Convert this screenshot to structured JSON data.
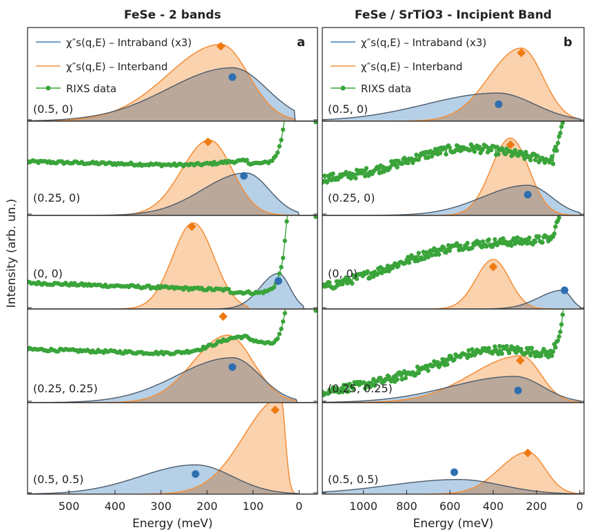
{
  "figure": {
    "ylabel": "Intensity (arb. un.)",
    "xlabel": "Energy (meV)"
  },
  "legend": {
    "intra_prefix": "χ″s(q,E) – Intraband (x3)",
    "inter_prefix": "χ″s(q,E) – Interband",
    "rixs": "RIXS data"
  },
  "colors": {
    "intra": "#3b7fb8",
    "intra_fill": "#a9c8e3",
    "inter": "#f3903b",
    "inter_fill": "#fbd2ae",
    "overlap_fill": "#baa89b",
    "rixs": "#3aa43a",
    "text": "#222222",
    "frame": "#222222"
  },
  "chart_data": [
    {
      "type": "area",
      "panel_label": "a",
      "title": "FeSe - 2 bands",
      "xlabel": "Energy (meV)",
      "xlim": [
        590,
        -40
      ],
      "x_ticks": [
        500,
        400,
        300,
        200,
        100,
        0
      ],
      "legend_position": "top-left",
      "rows": [
        {
          "q_label": "(0.5, 0)",
          "intraband": {
            "center": 145,
            "sigma_high": 140,
            "sigma_low": 75,
            "amp": 0.57,
            "end": 10,
            "marker": [
              145,
              0.47
            ]
          },
          "interband": {
            "center": 170,
            "sigma_high": 115,
            "sigma_low": 60,
            "amp": 0.82,
            "end": 10,
            "marker": [
              170,
              0.8
            ]
          },
          "rixs": null
        },
        {
          "q_label": "(0.25, 0)",
          "intraband": {
            "center": 115,
            "sigma_high": 95,
            "sigma_low": 50,
            "amp": 0.45,
            "end": 0,
            "marker": [
              120,
              0.42
            ]
          },
          "interband": {
            "center": 195,
            "sigma_high": 60,
            "sigma_low": 50,
            "amp": 0.8,
            "end": 0,
            "marker": [
              198,
              0.78
            ]
          },
          "rixs": {
            "start": 590,
            "level_start": 0.57,
            "level_end": 0.5,
            "bump_center": 110,
            "bump_amp": 0.06,
            "dip_center": 70,
            "rise_center": 25,
            "gap": [
              20,
              -22
            ]
          }
        },
        {
          "q_label": "(0, 0)",
          "intraband": {
            "center": 45,
            "sigma_high": 40,
            "sigma_low": 25,
            "amp": 0.38,
            "end": -10,
            "marker": [
              45,
              0.3
            ]
          },
          "interband": {
            "center": 230,
            "sigma_high": 45,
            "sigma_low": 45,
            "amp": 0.92,
            "end": 110,
            "marker": [
              233,
              0.88
            ]
          },
          "rixs": {
            "start": 590,
            "level_start": 0.28,
            "level_end": 0.17,
            "bump_center": 0,
            "bump_amp": 0.0,
            "dip_center": 110,
            "rise_center": 25,
            "gap": [
              18,
              -22
            ]
          }
        },
        {
          "q_label": "(0.25, 0.25)",
          "intraband": {
            "center": 145,
            "sigma_high": 120,
            "sigma_low": 60,
            "amp": 0.48,
            "end": 5,
            "marker": [
              145,
              0.38
            ]
          },
          "interband": {
            "center": 155,
            "sigma_high": 75,
            "sigma_low": 55,
            "amp": 0.72,
            "end": 5,
            "marker": [
              165,
              0.92
            ]
          },
          "rixs": {
            "start": 590,
            "level_start": 0.57,
            "level_end": 0.48,
            "bump_center": 120,
            "bump_amp": 0.2,
            "dip_center": 70,
            "rise_center": 22,
            "gap": [
              18,
              -22
            ]
          }
        },
        {
          "q_label": "(0.5, 0.5)",
          "intraband": {
            "center": 225,
            "sigma_high": 120,
            "sigma_low": 80,
            "amp": 0.32,
            "end": 0,
            "marker": [
              225,
              0.22
            ]
          },
          "interband": {
            "center": 40,
            "sigma_high": 80,
            "sigma_low": 10,
            "amp": 1.05,
            "end": 0,
            "marker": [
              52,
              0.92
            ]
          },
          "rixs": null
        }
      ]
    },
    {
      "type": "area",
      "panel_label": "b",
      "title": "FeSe / SrTiO3 - Incipient Band",
      "xlabel": "Energy (meV)",
      "xlim": [
        1190,
        -20
      ],
      "x_ticks": [
        1000,
        800,
        600,
        400,
        200,
        0
      ],
      "legend_position": "top-left",
      "rows": [
        {
          "q_label": "(0.5, 0)",
          "intraband": {
            "center": 380,
            "sigma_high": 330,
            "sigma_low": 170,
            "amp": 0.3,
            "end": 0,
            "marker": [
              375,
              0.18
            ]
          },
          "interband": {
            "center": 270,
            "sigma_high": 150,
            "sigma_low": 100,
            "amp": 0.78,
            "end": 0,
            "marker": [
              270,
              0.73
            ]
          },
          "rixs": null
        },
        {
          "q_label": "(0.25, 0)",
          "intraband": {
            "center": 240,
            "sigma_high": 210,
            "sigma_low": 110,
            "amp": 0.32,
            "end": 0,
            "marker": [
              240,
              0.22
            ]
          },
          "interband": {
            "center": 320,
            "sigma_high": 90,
            "sigma_low": 85,
            "amp": 0.82,
            "end": 0,
            "marker": [
              320,
              0.75
            ]
          },
          "rixs": {
            "start": 1190,
            "level_start": 0.38,
            "level_end": 0.55,
            "bump_center": 550,
            "bump_amp": 0.4,
            "dip_center": 0,
            "rise_center": 60,
            "gap": [
              35,
              -15
            ]
          }
        },
        {
          "q_label": "(0, 0)",
          "intraband": {
            "center": 80,
            "sigma_high": 110,
            "sigma_low": 40,
            "amp": 0.2,
            "end": 0,
            "marker": [
              70,
              0.2
            ]
          },
          "interband": {
            "center": 400,
            "sigma_high": 80,
            "sigma_low": 75,
            "amp": 0.53,
            "end": 0,
            "marker": [
              400,
              0.45
            ]
          },
          "rixs": {
            "start": 1190,
            "level_start": 0.22,
            "level_end": 0.8,
            "bump_center": 600,
            "bump_amp": 0.25,
            "dip_center": 0,
            "rise_center": 60,
            "gap": [
              35,
              -15
            ]
          }
        },
        {
          "q_label": "(0.25, 0.25)",
          "intraband": {
            "center": 300,
            "sigma_high": 300,
            "sigma_low": 130,
            "amp": 0.28,
            "end": 0,
            "marker": [
              285,
              0.13
            ]
          },
          "interband": {
            "center": 270,
            "sigma_high": 230,
            "sigma_low": 90,
            "amp": 0.5,
            "end": 0,
            "marker": [
              275,
              0.45
            ]
          },
          "rixs": {
            "start": 1190,
            "level_start": 0.12,
            "level_end": 0.45,
            "bump_center": 430,
            "bump_amp": 0.38,
            "dip_center": 0,
            "rise_center": 60,
            "gap": [
              35,
              -15
            ]
          }
        },
        {
          "q_label": "(0.5, 0.5)",
          "intraband": {
            "center": 560,
            "sigma_high": 320,
            "sigma_low": 200,
            "amp": 0.16,
            "end": 0,
            "marker": [
              580,
              0.24
            ]
          },
          "interband": {
            "center": 240,
            "sigma_high": 130,
            "sigma_low": 80,
            "amp": 0.46,
            "end": 0,
            "marker": [
              240,
              0.45
            ]
          },
          "rixs": null
        }
      ]
    }
  ]
}
